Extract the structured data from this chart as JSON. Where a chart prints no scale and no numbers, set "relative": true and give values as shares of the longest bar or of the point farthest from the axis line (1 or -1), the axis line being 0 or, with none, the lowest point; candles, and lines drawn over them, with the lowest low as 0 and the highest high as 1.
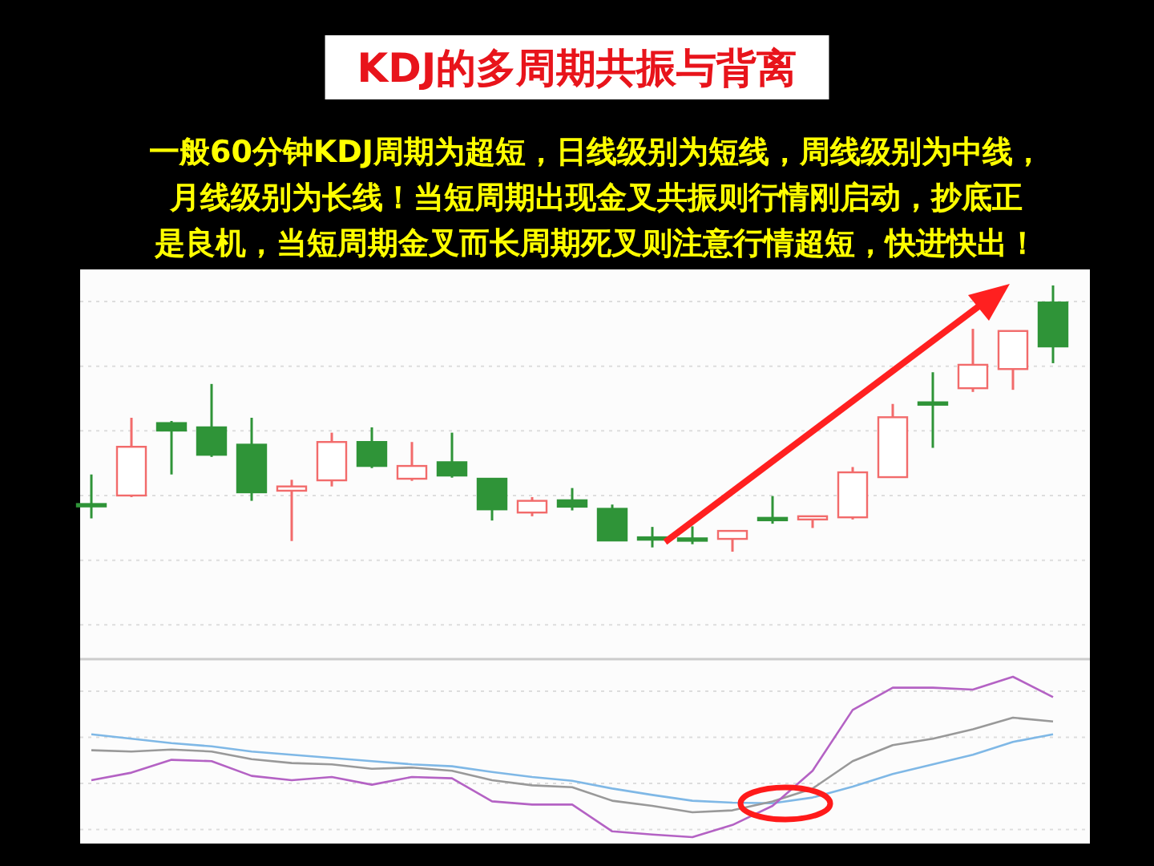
{
  "chart_data": [
    {
      "type": "candlestick",
      "title": "KDJ的多周期共振与背离",
      "subtitle": "一般60分钟KDJ周期为超短，日线级别为短线，周线级别为中线，月线级别为长线！当短周期出现金叉共振则行情刚启动，抄底正是良机，当短周期金叉而长周期死叉则注意行情超短，快进快出！",
      "relative": true,
      "grid": "y",
      "categories": [
        null,
        null,
        null,
        null,
        null,
        null,
        null,
        null,
        null,
        null,
        null,
        null,
        null,
        null,
        null,
        null,
        null,
        null,
        null,
        null,
        null,
        null,
        null,
        null,
        null
      ],
      "ohlc": [
        [
          0.179,
          0.29,
          0.125,
          0.173
        ],
        [
          0.211,
          0.503,
          0.205,
          0.394
        ],
        [
          0.483,
          0.491,
          0.29,
          0.455
        ],
        [
          0.467,
          0.63,
          0.356,
          0.364
        ],
        [
          0.402,
          0.503,
          0.191,
          0.223
        ],
        [
          0.229,
          0.27,
          0.04,
          0.245
        ],
        [
          0.268,
          0.447,
          0.245,
          0.412
        ],
        [
          0.412,
          0.467,
          0.314,
          0.322
        ],
        [
          0.274,
          0.412,
          0.266,
          0.322
        ],
        [
          0.336,
          0.447,
          0.278,
          0.286
        ],
        [
          0.274,
          0.274,
          0.117,
          0.159
        ],
        [
          0.147,
          0.205,
          0.133,
          0.191
        ],
        [
          0.193,
          0.239,
          0.155,
          0.169
        ],
        [
          0.161,
          0.177,
          0.04,
          0.042
        ],
        [
          0.054,
          0.093,
          0.016,
          0.05
        ],
        [
          0.05,
          0.095,
          0.028,
          0.044
        ],
        [
          0.048,
          0.08,
          0.0,
          0.078
        ],
        [
          0.127,
          0.209,
          0.105,
          0.119
        ],
        [
          0.121,
          0.135,
          0.089,
          0.133
        ],
        [
          0.129,
          0.318,
          0.121,
          0.298
        ],
        [
          0.28,
          0.555,
          0.278,
          0.505
        ],
        [
          0.561,
          0.674,
          0.39,
          0.555
        ],
        [
          0.614,
          0.837,
          0.6,
          0.702
        ],
        [
          0.686,
          0.831,
          0.608,
          0.829
        ],
        [
          0.936,
          1.0,
          0.708,
          0.771
        ]
      ],
      "colors": [
        "#2f9438",
        "#f26b6b",
        "#2f9438",
        "#2f9438",
        "#2f9438",
        "#f26b6b",
        "#f26b6b",
        "#2f9438",
        "#f26b6b",
        "#2f9438",
        "#2f9438",
        "#f26b6b",
        "#2f9438",
        "#2f9438",
        "#2f9438",
        "#2f9438",
        "#f26b6b",
        "#2f9438",
        "#f26b6b",
        "#f26b6b",
        "#f26b6b",
        "#2f9438",
        "#f26b6b",
        "#f26b6b",
        "#2f9438"
      ]
    },
    {
      "type": "line",
      "relative": true,
      "grid": "y",
      "categories": [
        null,
        null,
        null,
        null,
        null,
        null,
        null,
        null,
        null,
        null,
        null,
        null,
        null,
        null,
        null,
        null,
        null,
        null,
        null,
        null,
        null,
        null,
        null,
        null,
        null
      ],
      "series": [
        {
          "color": "#7fb8e6",
          "values": [
            0.641,
            0.614,
            0.586,
            0.566,
            0.534,
            0.514,
            0.494,
            0.474,
            0.454,
            0.442,
            0.406,
            0.375,
            0.351,
            0.303,
            0.263,
            0.227,
            0.215,
            0.211,
            0.247,
            0.315,
            0.394,
            0.454,
            0.514,
            0.594,
            0.641
          ]
        },
        {
          "color": "#999999",
          "values": [
            0.542,
            0.534,
            0.546,
            0.534,
            0.486,
            0.462,
            0.454,
            0.426,
            0.434,
            0.414,
            0.355,
            0.323,
            0.311,
            0.227,
            0.195,
            0.155,
            0.167,
            0.223,
            0.303,
            0.474,
            0.574,
            0.614,
            0.673,
            0.745,
            0.721
          ]
        },
        {
          "color": "#b462c4",
          "values": [
            0.355,
            0.402,
            0.482,
            0.474,
            0.382,
            0.355,
            0.375,
            0.327,
            0.375,
            0.367,
            0.223,
            0.203,
            0.203,
            0.036,
            0.016,
            0.0,
            0.076,
            0.195,
            0.414,
            0.793,
            0.932,
            0.932,
            0.92,
            1.0,
            0.873
          ]
        }
      ]
    }
  ]
}
